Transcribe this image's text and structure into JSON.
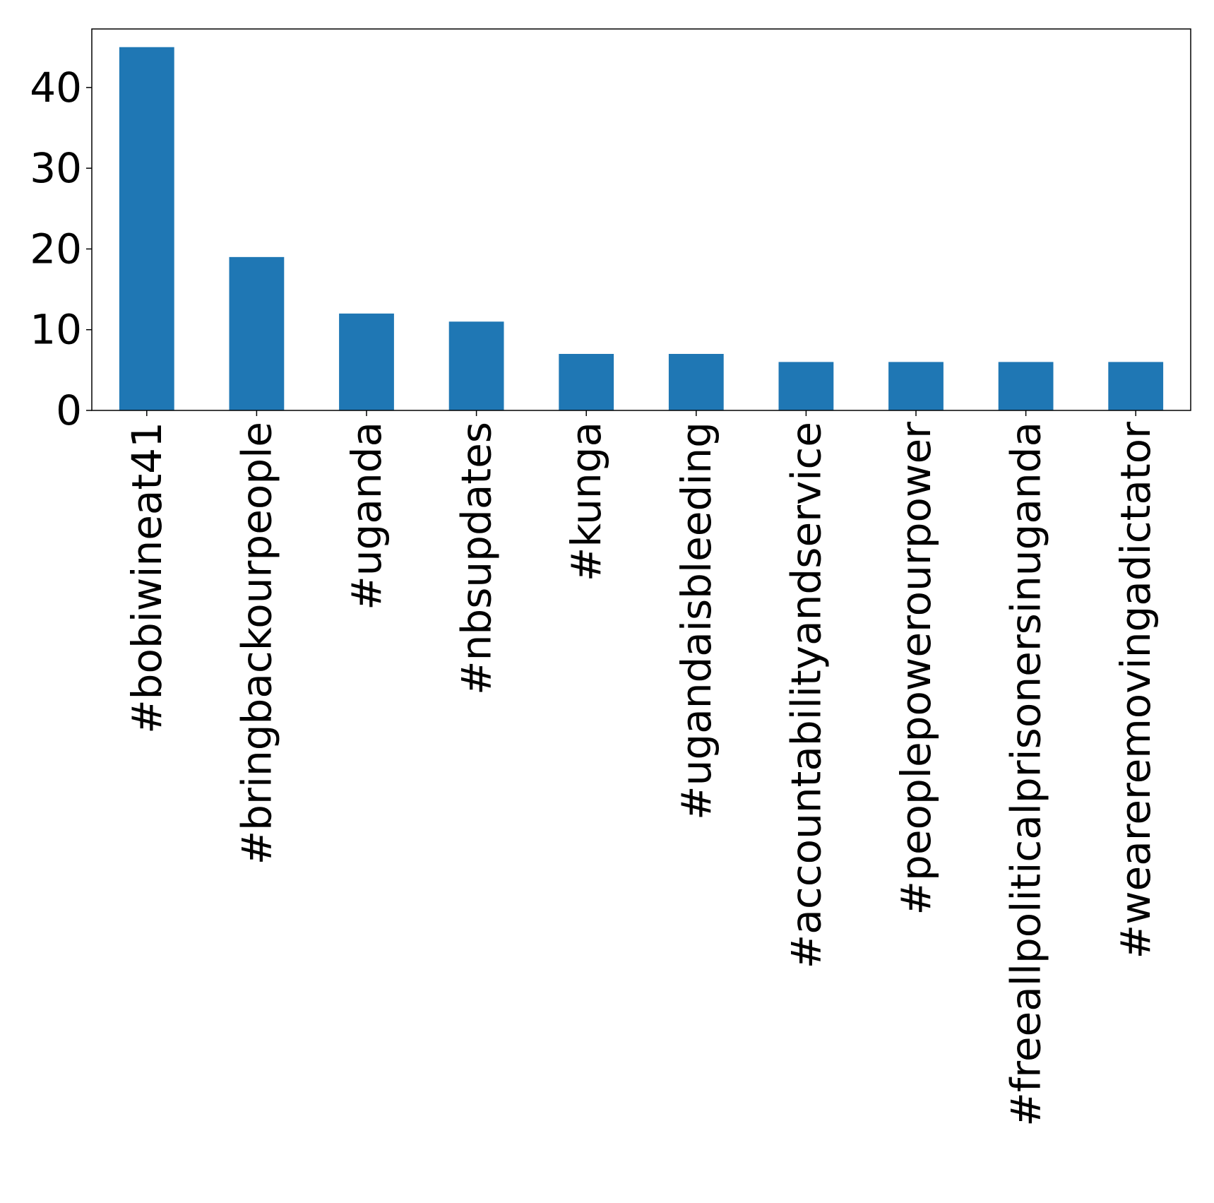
{
  "chart_data": {
    "type": "bar",
    "title": "",
    "xlabel": "",
    "ylabel": "",
    "categories": [
      "#bobiwineat41",
      "#bringbackourpeople",
      "#uganda",
      "#nbsupdates",
      "#kunga",
      "#ugandaisbleeding",
      "#accountabilityandservice",
      "#peoplepowerourpower",
      "#freeallpoliticalprisonersinuganda",
      "#weareremovingadictator"
    ],
    "values": [
      45,
      19,
      12,
      11,
      7,
      7,
      6,
      6,
      6,
      6
    ],
    "ylim": [
      0,
      47.25
    ],
    "yticks": [
      0,
      10,
      20,
      30,
      40
    ],
    "bar_color": "#1f77b4",
    "grid": false,
    "legend": "none"
  }
}
